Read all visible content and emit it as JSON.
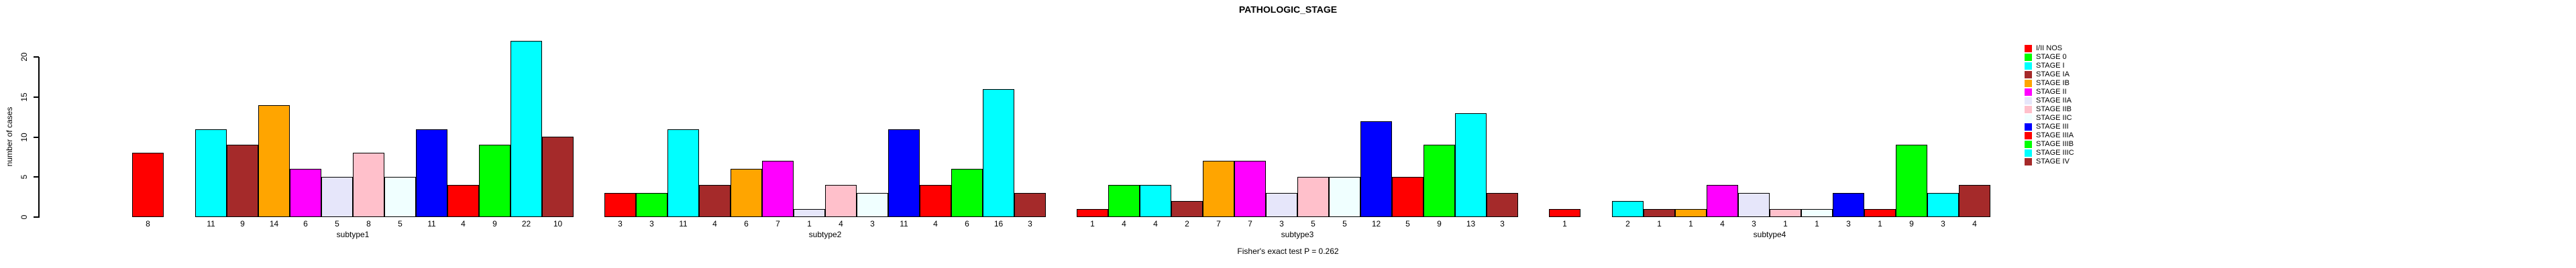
{
  "chart_data": {
    "type": "bar",
    "title": "PATHOLOGIC_STAGE",
    "ylabel": "number of cases",
    "xlabel": "",
    "ylim": [
      0,
      20
    ],
    "yticks": [
      0,
      5,
      10,
      15,
      20
    ],
    "grid": false,
    "legend_position": "right",
    "annotation": "Fisher's exact test P = 0.262",
    "bar_value_labels_shown": true,
    "categories": [
      "I/II NOS",
      "STAGE 0",
      "STAGE I",
      "STAGE IA",
      "STAGE IB",
      "STAGE II",
      "STAGE IIA",
      "STAGE IIB",
      "STAGE IIC",
      "STAGE III",
      "STAGE IIIA",
      "STAGE IIIB",
      "STAGE IIIC",
      "STAGE IV"
    ],
    "colors": [
      "#FF0000",
      "#00FF00",
      "#00FFFF",
      "#A52A2A",
      "#FFA500",
      "#FF00FF",
      "#E6E6FA",
      "#FFC0CB",
      "#F0FFFF",
      "#0000FF",
      "#FF0000",
      "#00FF00",
      "#00FFFF",
      "#A52A2A"
    ],
    "groups": [
      {
        "label": "subtype1",
        "values": [
          8,
          0,
          11,
          9,
          14,
          6,
          5,
          8,
          5,
          11,
          4,
          9,
          22,
          10
        ]
      },
      {
        "label": "subtype2",
        "values": [
          3,
          3,
          11,
          4,
          6,
          7,
          1,
          4,
          3,
          11,
          4,
          6,
          16,
          3
        ]
      },
      {
        "label": "subtype3",
        "values": [
          1,
          4,
          4,
          2,
          7,
          7,
          3,
          5,
          5,
          12,
          5,
          9,
          13,
          3
        ]
      },
      {
        "label": "subtype4",
        "values": [
          1,
          0,
          2,
          1,
          1,
          4,
          3,
          1,
          1,
          3,
          1,
          9,
          3,
          4
        ]
      }
    ],
    "legend": [
      {
        "label": "I/II NOS",
        "color": "#FF0000"
      },
      {
        "label": "STAGE 0",
        "color": "#00FF00"
      },
      {
        "label": "STAGE I",
        "color": "#00FFFF"
      },
      {
        "label": "STAGE IA",
        "color": "#A52A2A"
      },
      {
        "label": "STAGE IB",
        "color": "#FFA500"
      },
      {
        "label": "STAGE II",
        "color": "#FF00FF"
      },
      {
        "label": "STAGE IIA",
        "color": "#E6E6FA"
      },
      {
        "label": "STAGE IIB",
        "color": "#FFC0CB"
      },
      {
        "label": "STAGE IIC",
        "color": "#F0FFFF"
      },
      {
        "label": "STAGE III",
        "color": "#0000FF"
      },
      {
        "label": "STAGE IIIA",
        "color": "#FF0000"
      },
      {
        "label": "STAGE IIIB",
        "color": "#00FF00"
      },
      {
        "label": "STAGE IIIC",
        "color": "#00FFFF"
      },
      {
        "label": "STAGE IV",
        "color": "#A52A2A"
      }
    ]
  }
}
